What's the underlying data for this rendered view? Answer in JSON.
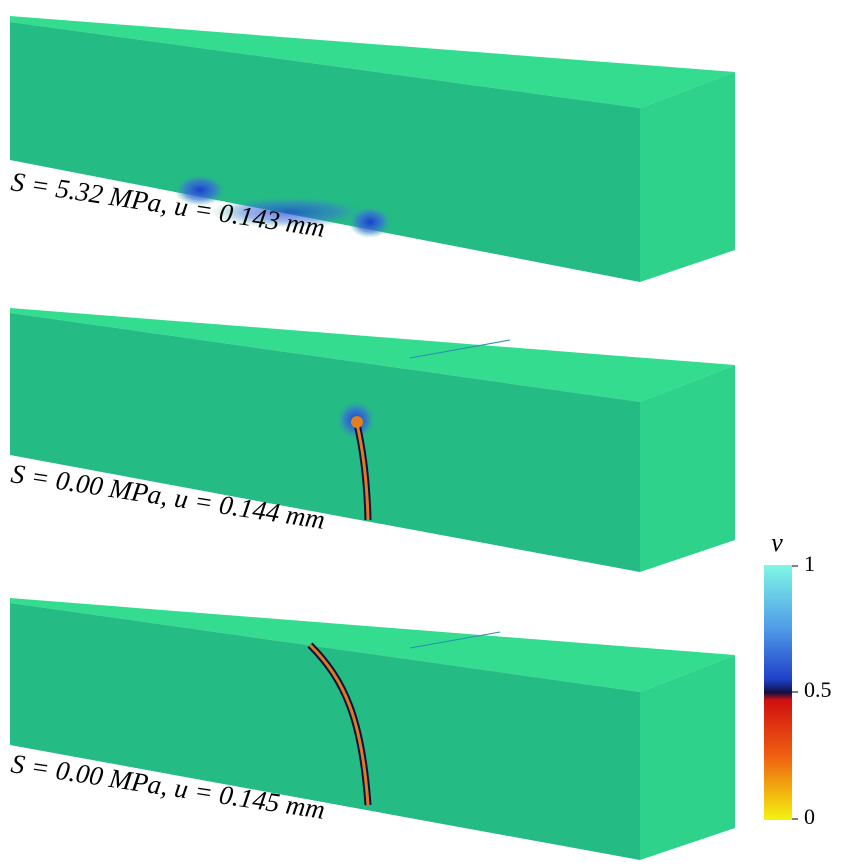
{
  "panels": [
    {
      "caption": "S = 5.32 MPa, u = 0.143 mm"
    },
    {
      "caption": "S = 0.00 MPa, u = 0.144 mm"
    },
    {
      "caption": "S = 0.00 MPa, u = 0.145 mm"
    }
  ],
  "colorbar": {
    "label": "v",
    "ticks": [
      "1",
      "0.5",
      "0"
    ]
  }
}
